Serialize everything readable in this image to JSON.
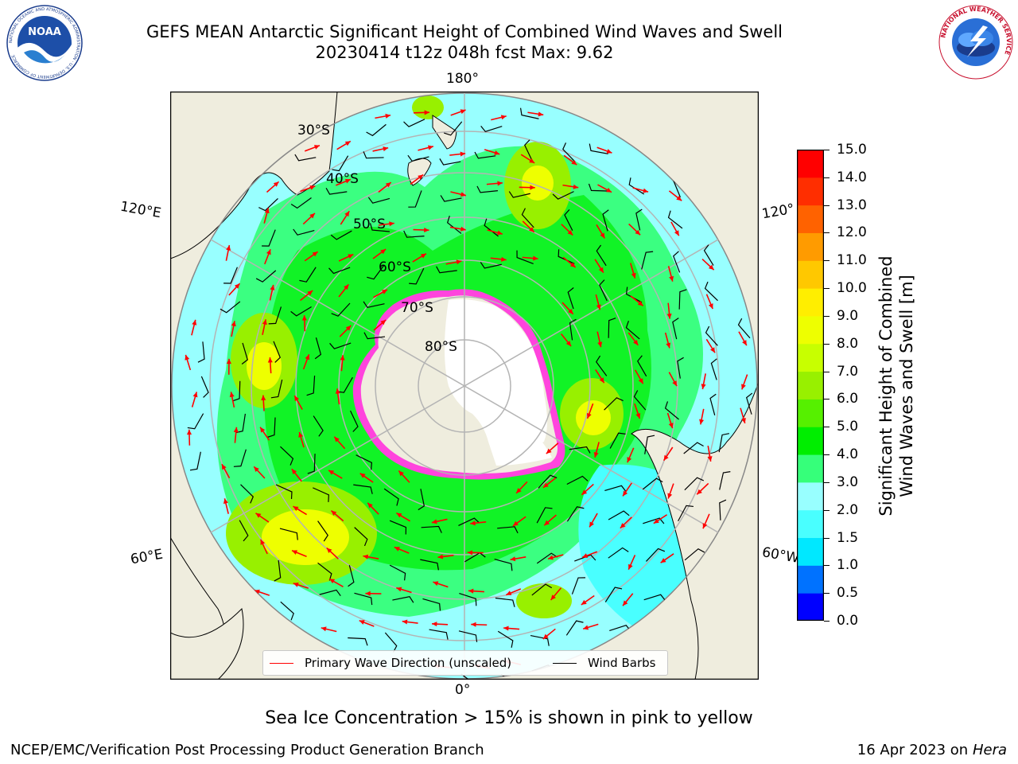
{
  "title": {
    "line1": "GEFS MEAN Antarctic Significant Height of Combined Wind Waves and Swell",
    "line2": "20230414 t12z 048h fcst   Max: 9.62"
  },
  "logos": {
    "left": {
      "name": "noaa-logo",
      "text": "NOAA",
      "ring_text": "NATIONAL OCEANIC AND ATMOSPHERIC ADMINISTRATION · U.S. DEPARTMENT OF COMMERCE"
    },
    "right": {
      "name": "nws-logo",
      "ring_text": "NATIONAL WEATHER SERVICE"
    }
  },
  "map": {
    "projection": "south-polar-stereographic",
    "lat_labels": [
      "30°S",
      "40°S",
      "50°S",
      "60°S",
      "70°S",
      "80°S"
    ],
    "lon_labels": {
      "top": "180°",
      "bottom": "0°",
      "upper_left": "120°E",
      "lower_left": "60°E",
      "upper_right": "120°",
      "lower_right": "60°W"
    },
    "colors": {
      "land": "#efedde",
      "ice_land": "#ffffff",
      "ocean_low": "#98ffff",
      "ocean_mid": "#36ff9a"
    }
  },
  "legend": {
    "wave_dir": {
      "label": "Primary Wave Direction (unscaled)",
      "color": "#ff0000"
    },
    "wind_barbs": {
      "label": "Wind Barbs",
      "color": "#000000"
    }
  },
  "colorbar": {
    "title_line1": "Significant Height of Combined",
    "title_line2": "Wind Waves and Swell [m]",
    "ticks": [
      "0.0",
      "0.5",
      "1.0",
      "1.5",
      "2.0",
      "3.0",
      "4.0",
      "5.0",
      "6.0",
      "7.0",
      "8.0",
      "9.0",
      "10.0",
      "11.0",
      "12.0",
      "13.0",
      "14.0",
      "15.0"
    ],
    "colors": [
      "#0000ff",
      "#0072ff",
      "#00e8ff",
      "#49ffff",
      "#98ffff",
      "#36ff7a",
      "#00ee00",
      "#56f000",
      "#98f000",
      "#c8ff00",
      "#eeff00",
      "#ffee00",
      "#ffc800",
      "#ff9b00",
      "#ff6200",
      "#ff2e00",
      "#ff0000"
    ]
  },
  "caption": "Sea Ice Concentration > 15% is shown in pink to yellow",
  "footer": {
    "left": "NCEP/EMC/Verification Post Processing Product Generation Branch",
    "right_date": "16 Apr 2023 on",
    "right_machine": "Hera"
  }
}
